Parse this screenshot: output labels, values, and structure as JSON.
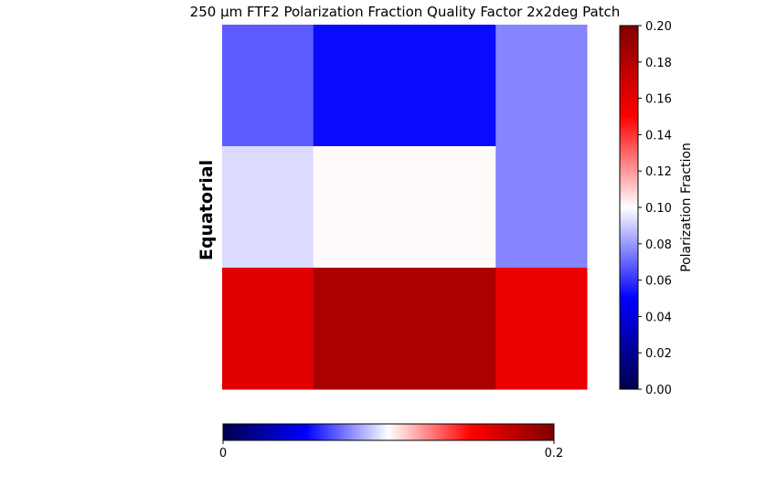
{
  "chart_data": [
    {
      "type": "heatmap",
      "title": "250 μm FTF2 Polarization Fraction Quality Factor 2x2deg Patch",
      "row_label": "Equatorial",
      "colormap": "seismic",
      "color_range": [
        0.0,
        0.2
      ],
      "rows": 3,
      "cols": 4,
      "cells": [
        {
          "row": 0,
          "col": 0,
          "colspan": 1,
          "value": 0.068
        },
        {
          "row": 0,
          "col": 1,
          "colspan": 2,
          "value": 0.052
        },
        {
          "row": 0,
          "col": 3,
          "colspan": 1,
          "value": 0.076
        },
        {
          "row": 1,
          "col": 0,
          "colspan": 1,
          "value": 0.093
        },
        {
          "row": 1,
          "col": 1,
          "colspan": 2,
          "value": 0.101
        },
        {
          "row": 1,
          "col": 3,
          "colspan": 1,
          "value": 0.076
        },
        {
          "row": 2,
          "col": 0,
          "colspan": 1,
          "value": 0.162
        },
        {
          "row": 2,
          "col": 1,
          "colspan": 2,
          "value": 0.183
        },
        {
          "row": 2,
          "col": 3,
          "colspan": 1,
          "value": 0.158
        }
      ],
      "colorbar": {
        "label": "Polarization Fraction",
        "ticks": [
          "0.00",
          "0.02",
          "0.04",
          "0.06",
          "0.08",
          "0.10",
          "0.12",
          "0.14",
          "0.16",
          "0.18",
          "0.20"
        ]
      }
    },
    {
      "type": "colorbar",
      "colormap": "seismic",
      "range": [
        0,
        0.2
      ],
      "ticks": [
        "0",
        "0.2"
      ]
    }
  ]
}
